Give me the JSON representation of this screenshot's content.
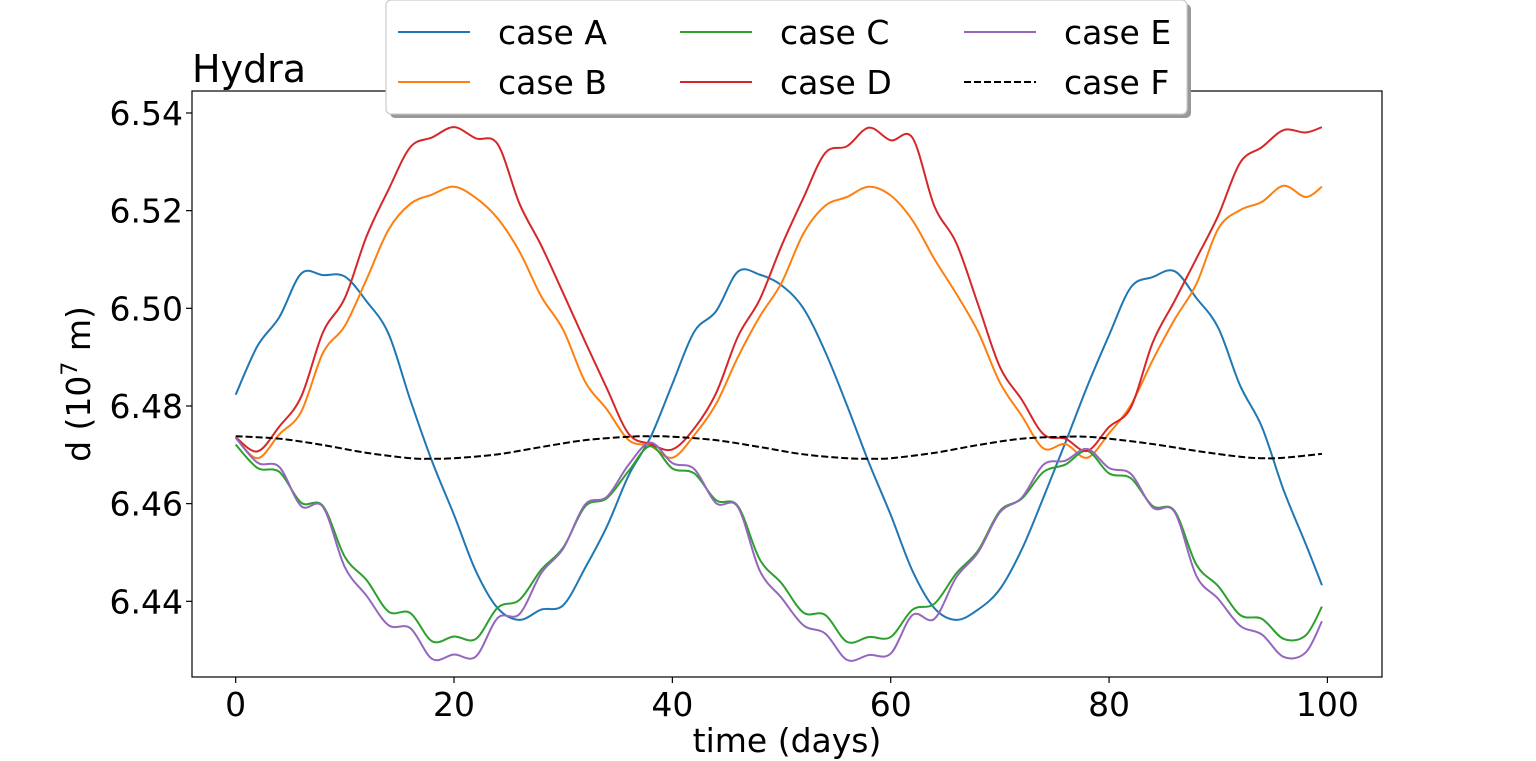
{
  "chart_data": {
    "type": "line",
    "title": "Hydra",
    "xlabel": "time (days)",
    "ylabel_main": "d (10",
    "ylabel_exp": "7",
    "ylabel_end": " m)",
    "xlim": [
      -4,
      105
    ],
    "ylim": [
      6.4245,
      6.5445
    ],
    "x_ticks": [
      0,
      20,
      40,
      60,
      80,
      100
    ],
    "x_tick_labels": [
      "0",
      "20",
      "40",
      "60",
      "80",
      "100"
    ],
    "y_ticks": [
      6.44,
      6.46,
      6.48,
      6.5,
      6.52,
      6.54
    ],
    "y_tick_labels": [
      "6.44",
      "6.46",
      "6.48",
      "6.50",
      "6.52",
      "6.54"
    ],
    "legend_position": "top-center, above plot, 2 rows x 3 columns",
    "series": [
      {
        "name": "case A",
        "color": "#1f77b4",
        "dash": "solid",
        "x": [
          0,
          2,
          4,
          6,
          8,
          10,
          12,
          14,
          16,
          18,
          20,
          22,
          24,
          26,
          28,
          30,
          32,
          34,
          36,
          38,
          40,
          42,
          44,
          46,
          48,
          50,
          52,
          54,
          56,
          58,
          60,
          62,
          64,
          66,
          68,
          70,
          72,
          74,
          76,
          78,
          80,
          82,
          84,
          86,
          88,
          90,
          92,
          94,
          96,
          98,
          99.5
        ],
        "y": [
          6.4823,
          6.4923,
          6.4982,
          6.5071,
          6.5068,
          6.5065,
          6.5014,
          6.4948,
          6.4812,
          6.4686,
          6.4577,
          6.4462,
          6.4386,
          6.4362,
          6.4383,
          6.4392,
          6.4468,
          6.4553,
          6.4658,
          6.4736,
          6.4845,
          6.4952,
          6.4994,
          6.5075,
          6.5069,
          6.5047,
          6.5,
          6.4911,
          6.4801,
          6.4684,
          6.4577,
          6.4462,
          6.4386,
          6.4362,
          6.4383,
          6.4425,
          6.4506,
          6.4613,
          6.4725,
          6.484,
          6.4945,
          6.5043,
          6.5064,
          6.5076,
          6.5021,
          6.496,
          6.4842,
          6.4757,
          6.4627,
          6.4518,
          6.4433
        ]
      },
      {
        "name": "case B",
        "color": "#ff7f0e",
        "dash": "solid",
        "x": [
          0,
          2,
          4,
          6,
          8,
          10,
          12,
          14,
          16,
          18,
          20,
          22,
          24,
          26,
          28,
          30,
          32,
          34,
          36,
          38,
          40,
          42,
          44,
          46,
          48,
          50,
          52,
          54,
          56,
          58,
          60,
          62,
          64,
          66,
          68,
          70,
          72,
          74,
          76,
          78,
          80,
          82,
          84,
          86,
          88,
          90,
          92,
          94,
          96,
          98,
          99.5
        ],
        "y": [
          6.4736,
          6.4693,
          6.4742,
          6.4788,
          6.4909,
          6.4964,
          6.506,
          6.5161,
          6.5214,
          6.5233,
          6.5249,
          6.5226,
          6.5184,
          6.5116,
          6.5024,
          6.4956,
          6.485,
          6.4793,
          6.473,
          6.4718,
          6.4694,
          6.474,
          6.4804,
          6.49,
          6.4983,
          6.5052,
          6.5153,
          6.521,
          6.5228,
          6.5249,
          6.5231,
          6.518,
          6.5101,
          6.503,
          6.4952,
          6.4848,
          6.478,
          6.4713,
          6.4722,
          6.4694,
          6.4744,
          6.4802,
          6.4894,
          6.4977,
          6.505,
          6.5163,
          6.5201,
          6.5218,
          6.5251,
          6.5228,
          6.5249
        ]
      },
      {
        "name": "case C",
        "color": "#2ca02c",
        "dash": "solid",
        "x": [
          0,
          2,
          4,
          6,
          8,
          10,
          12,
          14,
          16,
          18,
          20,
          22,
          24,
          26,
          28,
          30,
          32,
          34,
          36,
          38,
          40,
          42,
          44,
          46,
          48,
          50,
          52,
          54,
          56,
          58,
          60,
          62,
          64,
          66,
          68,
          70,
          72,
          74,
          76,
          78,
          80,
          82,
          84,
          86,
          88,
          90,
          92,
          94,
          96,
          98,
          99.5
        ],
        "y": [
          6.4721,
          6.4673,
          6.4665,
          6.4602,
          6.4595,
          6.4491,
          6.4443,
          6.4379,
          6.4376,
          6.4318,
          6.4328,
          6.4323,
          6.4387,
          6.4403,
          6.4465,
          6.451,
          6.4594,
          6.4611,
          6.4667,
          6.4718,
          6.4672,
          6.4662,
          6.4607,
          6.4595,
          6.4486,
          6.4437,
          6.4377,
          6.4372,
          6.4317,
          6.4327,
          6.4327,
          6.4383,
          6.4395,
          6.4457,
          6.4504,
          6.4585,
          6.461,
          6.4665,
          6.468,
          6.4708,
          6.4662,
          6.4652,
          6.4595,
          6.4585,
          6.4475,
          6.4431,
          6.4372,
          6.4364,
          6.4323,
          6.433,
          6.4389
        ]
      },
      {
        "name": "case D",
        "color": "#d62728",
        "dash": "solid",
        "x": [
          0,
          2,
          4,
          6,
          8,
          10,
          12,
          14,
          16,
          18,
          20,
          22,
          24,
          26,
          28,
          30,
          32,
          34,
          36,
          38,
          40,
          42,
          44,
          46,
          48,
          50,
          52,
          54,
          56,
          58,
          60,
          62,
          64,
          66,
          68,
          70,
          72,
          74,
          76,
          78,
          80,
          82,
          84,
          86,
          88,
          90,
          92,
          94,
          96,
          98,
          99.5
        ],
        "y": [
          6.4736,
          6.4707,
          6.4758,
          6.4819,
          6.4951,
          6.5021,
          6.5148,
          6.5243,
          6.533,
          6.535,
          6.5371,
          6.5348,
          6.5336,
          6.5214,
          6.5128,
          6.5031,
          6.4932,
          6.4836,
          6.4743,
          6.4722,
          6.4711,
          6.4754,
          6.4826,
          6.4942,
          6.5018,
          6.5128,
          6.5226,
          6.5318,
          6.5332,
          6.537,
          6.5344,
          6.5349,
          6.5209,
          6.5134,
          6.5008,
          6.488,
          6.4813,
          6.4742,
          6.4733,
          6.4708,
          6.4757,
          6.4797,
          6.493,
          6.5015,
          6.5102,
          6.519,
          6.5298,
          6.533,
          6.5365,
          6.536,
          6.5371
        ]
      },
      {
        "name": "case E",
        "color": "#9467bd",
        "dash": "solid",
        "x": [
          0,
          2,
          4,
          6,
          8,
          10,
          12,
          14,
          16,
          18,
          20,
          22,
          24,
          26,
          28,
          30,
          32,
          34,
          36,
          38,
          40,
          42,
          44,
          46,
          48,
          50,
          52,
          54,
          56,
          58,
          60,
          62,
          64,
          66,
          68,
          70,
          72,
          74,
          76,
          78,
          80,
          82,
          84,
          86,
          88,
          90,
          92,
          94,
          96,
          98,
          99.5
        ],
        "y": [
          6.4735,
          6.4684,
          6.4675,
          6.4595,
          6.4593,
          6.447,
          6.4411,
          6.4351,
          6.4345,
          6.4282,
          6.4291,
          6.4287,
          6.4366,
          6.4374,
          6.4458,
          6.4508,
          6.4598,
          6.4614,
          6.468,
          6.4725,
          6.4683,
          6.4671,
          6.4601,
          6.4593,
          6.4463,
          6.4407,
          6.4351,
          6.4334,
          6.428,
          6.429,
          6.4293,
          6.4372,
          6.4364,
          6.4449,
          6.45,
          6.4582,
          6.4612,
          6.468,
          6.4688,
          6.4712,
          6.4673,
          6.4661,
          6.4592,
          6.4583,
          6.4452,
          6.4405,
          6.435,
          6.4332,
          6.4286,
          6.4295,
          6.4359
        ]
      },
      {
        "name": "case F",
        "color": "#000000",
        "dash": "dashed",
        "x": [
          0,
          4,
          8,
          12,
          16,
          18,
          20,
          24,
          28,
          32,
          36,
          38,
          40,
          44,
          48,
          52,
          56,
          58,
          60,
          64,
          68,
          72,
          76,
          78,
          80,
          84,
          88,
          92,
          94,
          96,
          99.5
        ],
        "y": [
          6.4738,
          6.4733,
          6.472,
          6.4704,
          6.4693,
          6.4692,
          6.4693,
          6.4701,
          6.4716,
          6.473,
          6.4737,
          6.4738,
          6.4737,
          6.473,
          6.4716,
          6.4701,
          6.4693,
          6.4692,
          6.4693,
          6.4704,
          6.472,
          6.4733,
          6.4737,
          6.4737,
          6.4733,
          6.4722,
          6.4708,
          6.4696,
          6.4693,
          6.4694,
          6.4702
        ]
      }
    ]
  }
}
